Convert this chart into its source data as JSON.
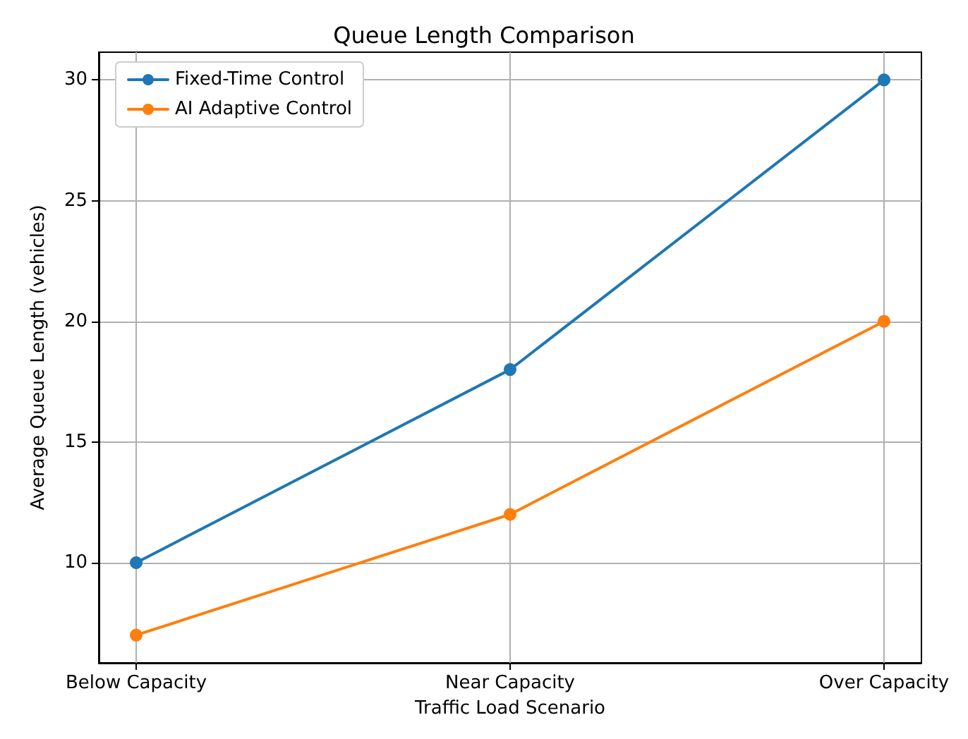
{
  "chart_data": {
    "type": "line",
    "title": "Queue Length Comparison",
    "xlabel": "Traffic Load Scenario",
    "ylabel": "Average Queue Length (vehicles)",
    "categories": [
      "Below Capacity",
      "Near Capacity",
      "Over Capacity"
    ],
    "series": [
      {
        "name": "Fixed-Time Control",
        "color": "#1f77b4",
        "values": [
          10,
          18,
          30
        ]
      },
      {
        "name": "AI Adaptive Control",
        "color": "#ff7f0e",
        "values": [
          7,
          12,
          20
        ]
      }
    ],
    "ylim": [
      5.85,
      31.15
    ],
    "yticks": [
      10,
      15,
      20,
      25,
      30
    ],
    "grid": true,
    "legend": "top left",
    "marker": "circle",
    "line_style": "solid"
  }
}
